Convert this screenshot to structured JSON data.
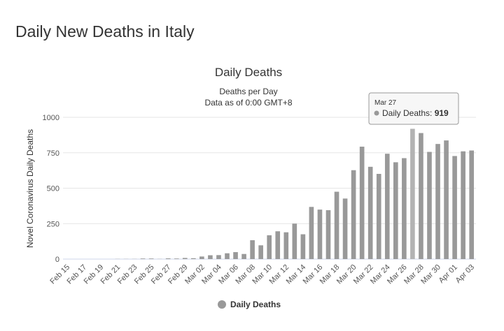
{
  "page": {
    "title": "Daily New Deaths in Italy"
  },
  "chart_data": {
    "type": "bar",
    "title": "Daily Deaths",
    "subtitle_line1": "Deaths per Day",
    "subtitle_line2": "Data as of 0:00 GMT+8",
    "ylabel": "Novel Coronavirus Daily Deaths",
    "xlabel": "",
    "ylim": [
      0,
      1000
    ],
    "yticks": [
      0,
      250,
      500,
      750,
      1000
    ],
    "grid": true,
    "legend_placement": "bottom",
    "bar_color": "#999999",
    "categories": [
      "Feb 15",
      "Feb 16",
      "Feb 17",
      "Feb 18",
      "Feb 19",
      "Feb 20",
      "Feb 21",
      "Feb 22",
      "Feb 23",
      "Feb 24",
      "Feb 25",
      "Feb 26",
      "Feb 27",
      "Feb 28",
      "Feb 29",
      "Mar 01",
      "Mar 02",
      "Mar 03",
      "Mar 04",
      "Mar 05",
      "Mar 06",
      "Mar 07",
      "Mar 08",
      "Mar 09",
      "Mar 10",
      "Mar 11",
      "Mar 12",
      "Mar 13",
      "Mar 14",
      "Mar 15",
      "Mar 16",
      "Mar 17",
      "Mar 18",
      "Mar 19",
      "Mar 20",
      "Mar 21",
      "Mar 22",
      "Mar 23",
      "Mar 24",
      "Mar 25",
      "Mar 26",
      "Mar 27",
      "Mar 28",
      "Mar 29",
      "Mar 30",
      "Mar 31",
      "Apr 01",
      "Apr 02",
      "Apr 03"
    ],
    "series": [
      {
        "name": "Daily Deaths",
        "values": [
          0,
          0,
          0,
          0,
          0,
          0,
          1,
          1,
          1,
          4,
          4,
          1,
          5,
          4,
          8,
          6,
          18,
          27,
          28,
          41,
          49,
          36,
          133,
          97,
          168,
          196,
          189,
          250,
          175,
          368,
          349,
          345,
          475,
          427,
          627,
          793,
          651,
          601,
          743,
          683,
          712,
          919,
          889,
          756,
          812,
          837,
          727,
          760,
          766
        ]
      }
    ],
    "tooltip": {
      "date": "Mar 27",
      "label": "Daily Deaths: ",
      "value": "919"
    }
  }
}
